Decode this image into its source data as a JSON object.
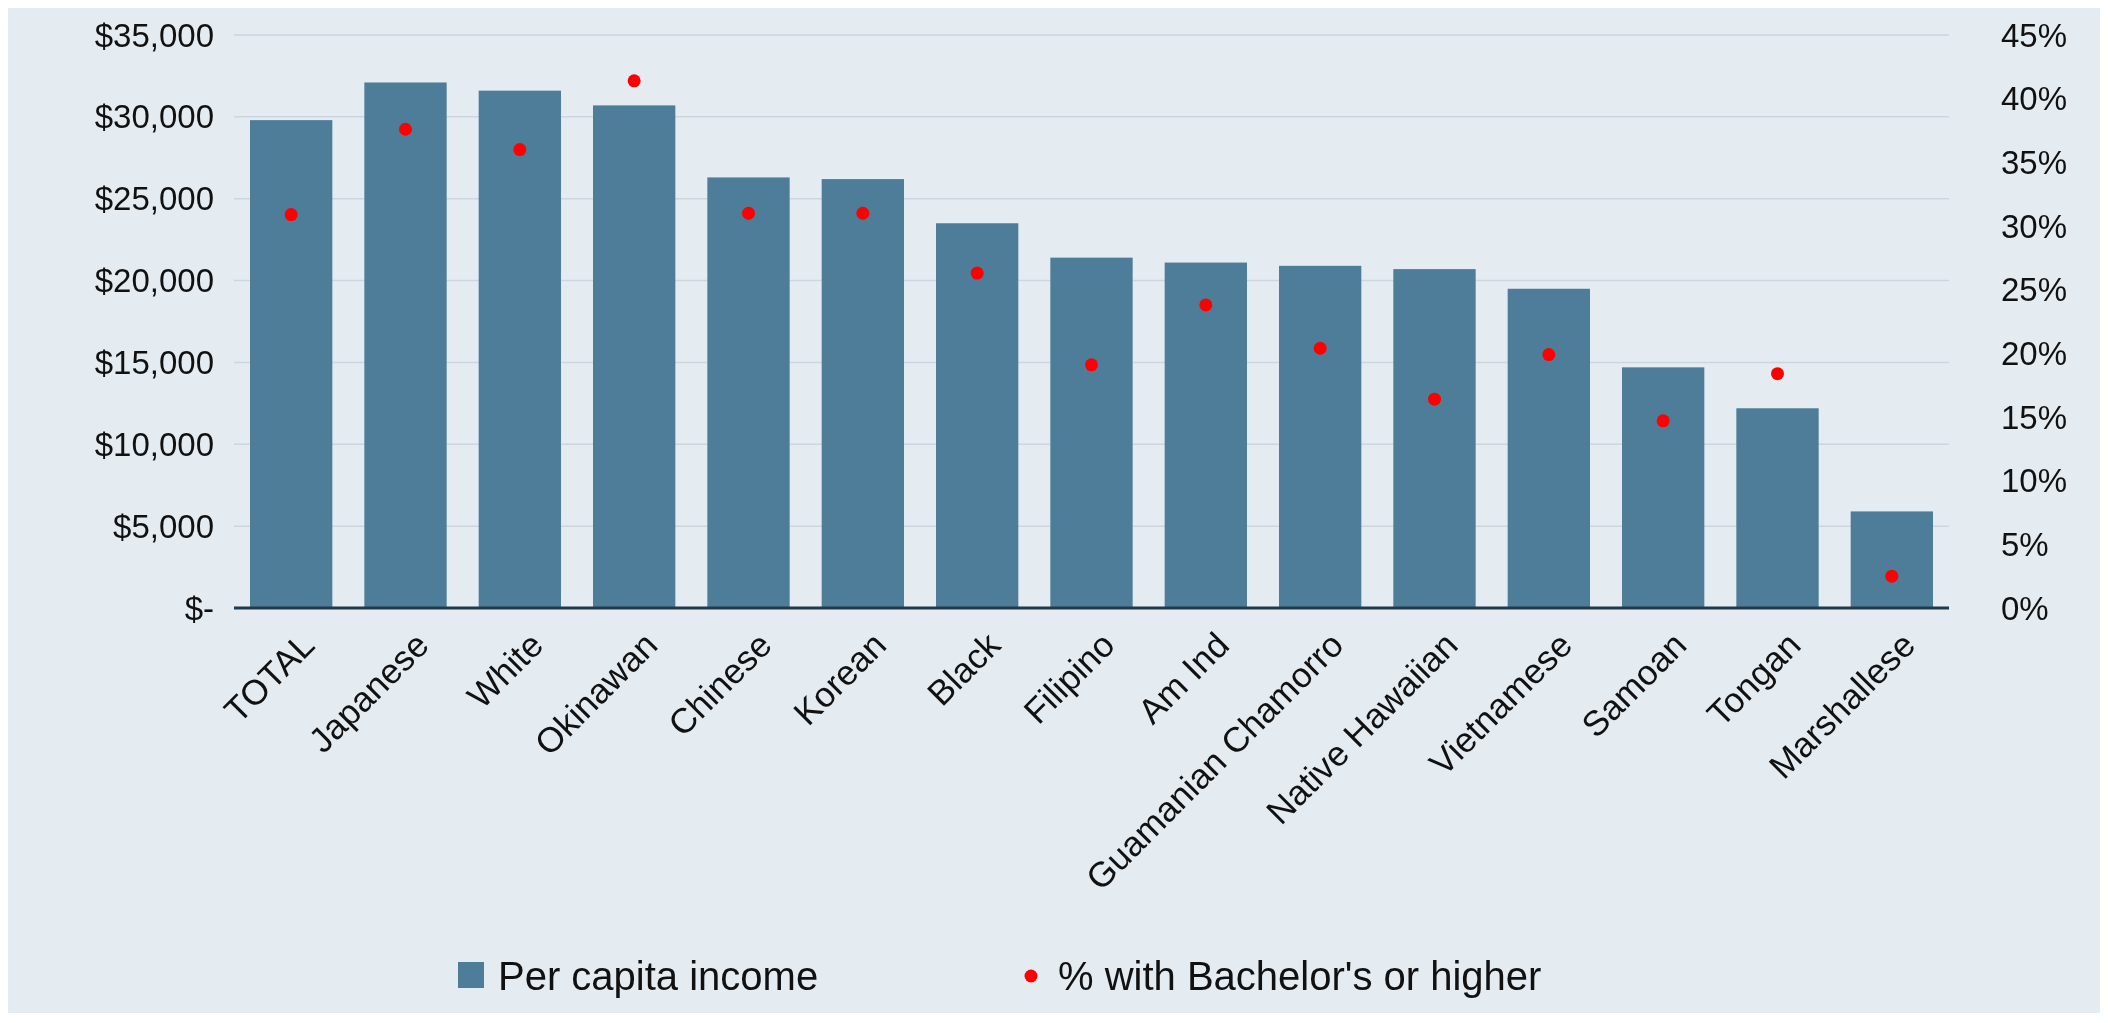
{
  "chart_data": {
    "type": "bar",
    "categories": [
      "TOTAL",
      "Japanese",
      "White",
      "Okinawan",
      "Chinese",
      "Korean",
      "Black",
      "Filipino",
      "Am Ind",
      "Guamanian Chamorro",
      "Native Hawaiian",
      "Vietnamese",
      "Samoan",
      "Tongan",
      "Marshallese"
    ],
    "series": [
      {
        "name": "Per capita income",
        "color": "#4e7d9a",
        "values": [
          29800,
          32100,
          31600,
          30700,
          26300,
          26200,
          23500,
          21400,
          21100,
          20900,
          20700,
          19500,
          14700,
          12200,
          5900
        ]
      },
      {
        "name": "% with Bachelor's or higher",
        "type": "scatter",
        "axis": "y2",
        "color": "#ff0000",
        "values": [
          30.9,
          37.6,
          36.0,
          41.4,
          31.0,
          31.0,
          26.3,
          19.1,
          23.8,
          20.4,
          16.4,
          19.9,
          14.7,
          18.4,
          2.5
        ]
      }
    ],
    "ylim": [
      0,
      35000
    ],
    "yticks": [
      {
        "value": 0,
        "label": "$-"
      },
      {
        "value": 5000,
        "label": "$5,000"
      },
      {
        "value": 10000,
        "label": "$10,000"
      },
      {
        "value": 15000,
        "label": "$15,000"
      },
      {
        "value": 20000,
        "label": "$20,000"
      },
      {
        "value": 25000,
        "label": "$25,000"
      },
      {
        "value": 30000,
        "label": "$30,000"
      },
      {
        "value": 35000,
        "label": "$35,000"
      }
    ],
    "y2lim": [
      0,
      45
    ],
    "y2ticks": [
      {
        "value": 0,
        "label": "0%"
      },
      {
        "value": 5,
        "label": "5%"
      },
      {
        "value": 10,
        "label": "10%"
      },
      {
        "value": 15,
        "label": "15%"
      },
      {
        "value": 20,
        "label": "20%"
      },
      {
        "value": 25,
        "label": "25%"
      },
      {
        "value": 30,
        "label": "30%"
      },
      {
        "value": 35,
        "label": "35%"
      },
      {
        "value": 40,
        "label": "40%"
      },
      {
        "value": 45,
        "label": "45%"
      }
    ],
    "grid": "y",
    "legend": "bottom",
    "marker": "circle"
  }
}
